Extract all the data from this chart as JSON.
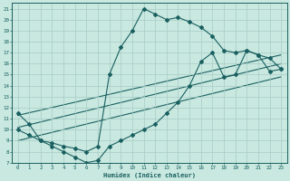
{
  "xlabel": "Humidex (Indice chaleur)",
  "bg_color": "#c8e8e0",
  "grid_color": "#a8ccc4",
  "line_color": "#1a6060",
  "xlim": [
    -0.5,
    23.5
  ],
  "ylim": [
    7,
    21.5
  ],
  "yticks": [
    7,
    8,
    9,
    10,
    11,
    12,
    13,
    14,
    15,
    16,
    17,
    18,
    19,
    20,
    21
  ],
  "xticks": [
    0,
    1,
    2,
    3,
    4,
    5,
    6,
    7,
    8,
    9,
    10,
    11,
    12,
    13,
    14,
    15,
    16,
    17,
    18,
    19,
    20,
    21,
    22,
    23
  ],
  "curve1_x": [
    0,
    1,
    2,
    3,
    4,
    5,
    6,
    7,
    8,
    9,
    10,
    11,
    12,
    13,
    14,
    15,
    16,
    17,
    18,
    19,
    20,
    21,
    22,
    23
  ],
  "curve1_y": [
    11.5,
    10.5,
    9.0,
    8.8,
    8.5,
    8.3,
    8.0,
    8.5,
    15.0,
    17.5,
    19.0,
    21.0,
    20.5,
    20.0,
    20.2,
    19.8,
    19.3,
    18.5,
    17.2,
    17.0,
    17.2,
    16.8,
    16.5,
    15.5
  ],
  "curve2_x": [
    0,
    1,
    2,
    3,
    4,
    5,
    6,
    7,
    8,
    9,
    10,
    11,
    12,
    13,
    14,
    15,
    16,
    17,
    18,
    19,
    20,
    21,
    22,
    23
  ],
  "curve2_y": [
    10.0,
    9.5,
    9.0,
    8.5,
    8.0,
    7.5,
    7.0,
    7.2,
    8.5,
    9.0,
    9.5,
    10.0,
    10.5,
    11.5,
    12.5,
    14.0,
    16.2,
    17.0,
    14.8,
    15.0,
    17.2,
    16.8,
    15.3,
    15.5
  ],
  "trend1_x": [
    0,
    23
  ],
  "trend1_y": [
    10.2,
    16.0
  ],
  "trend2_x": [
    0,
    23
  ],
  "trend2_y": [
    9.0,
    14.8
  ],
  "trend3_x": [
    0,
    23
  ],
  "trend3_y": [
    11.3,
    16.8
  ]
}
